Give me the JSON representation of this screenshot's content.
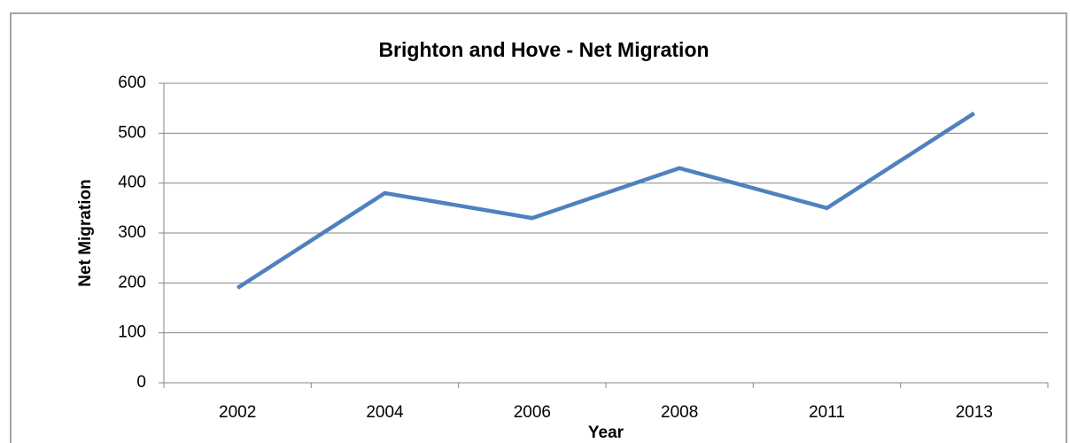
{
  "chart_data": {
    "type": "line",
    "title": "Brighton and Hove - Net Migration",
    "x_label": "Year",
    "y_label": "Net Migration",
    "categories": [
      "2002",
      "2004",
      "2006",
      "2008",
      "2011",
      "2013"
    ],
    "series": [
      {
        "name": "Net Migration",
        "color": "#4f81bd",
        "values": [
          190,
          380,
          330,
          430,
          350,
          540
        ]
      }
    ],
    "ylim": [
      0,
      600
    ],
    "yticks": [
      0,
      100,
      200,
      300,
      400,
      500,
      600
    ],
    "grid": true,
    "legend": false
  }
}
